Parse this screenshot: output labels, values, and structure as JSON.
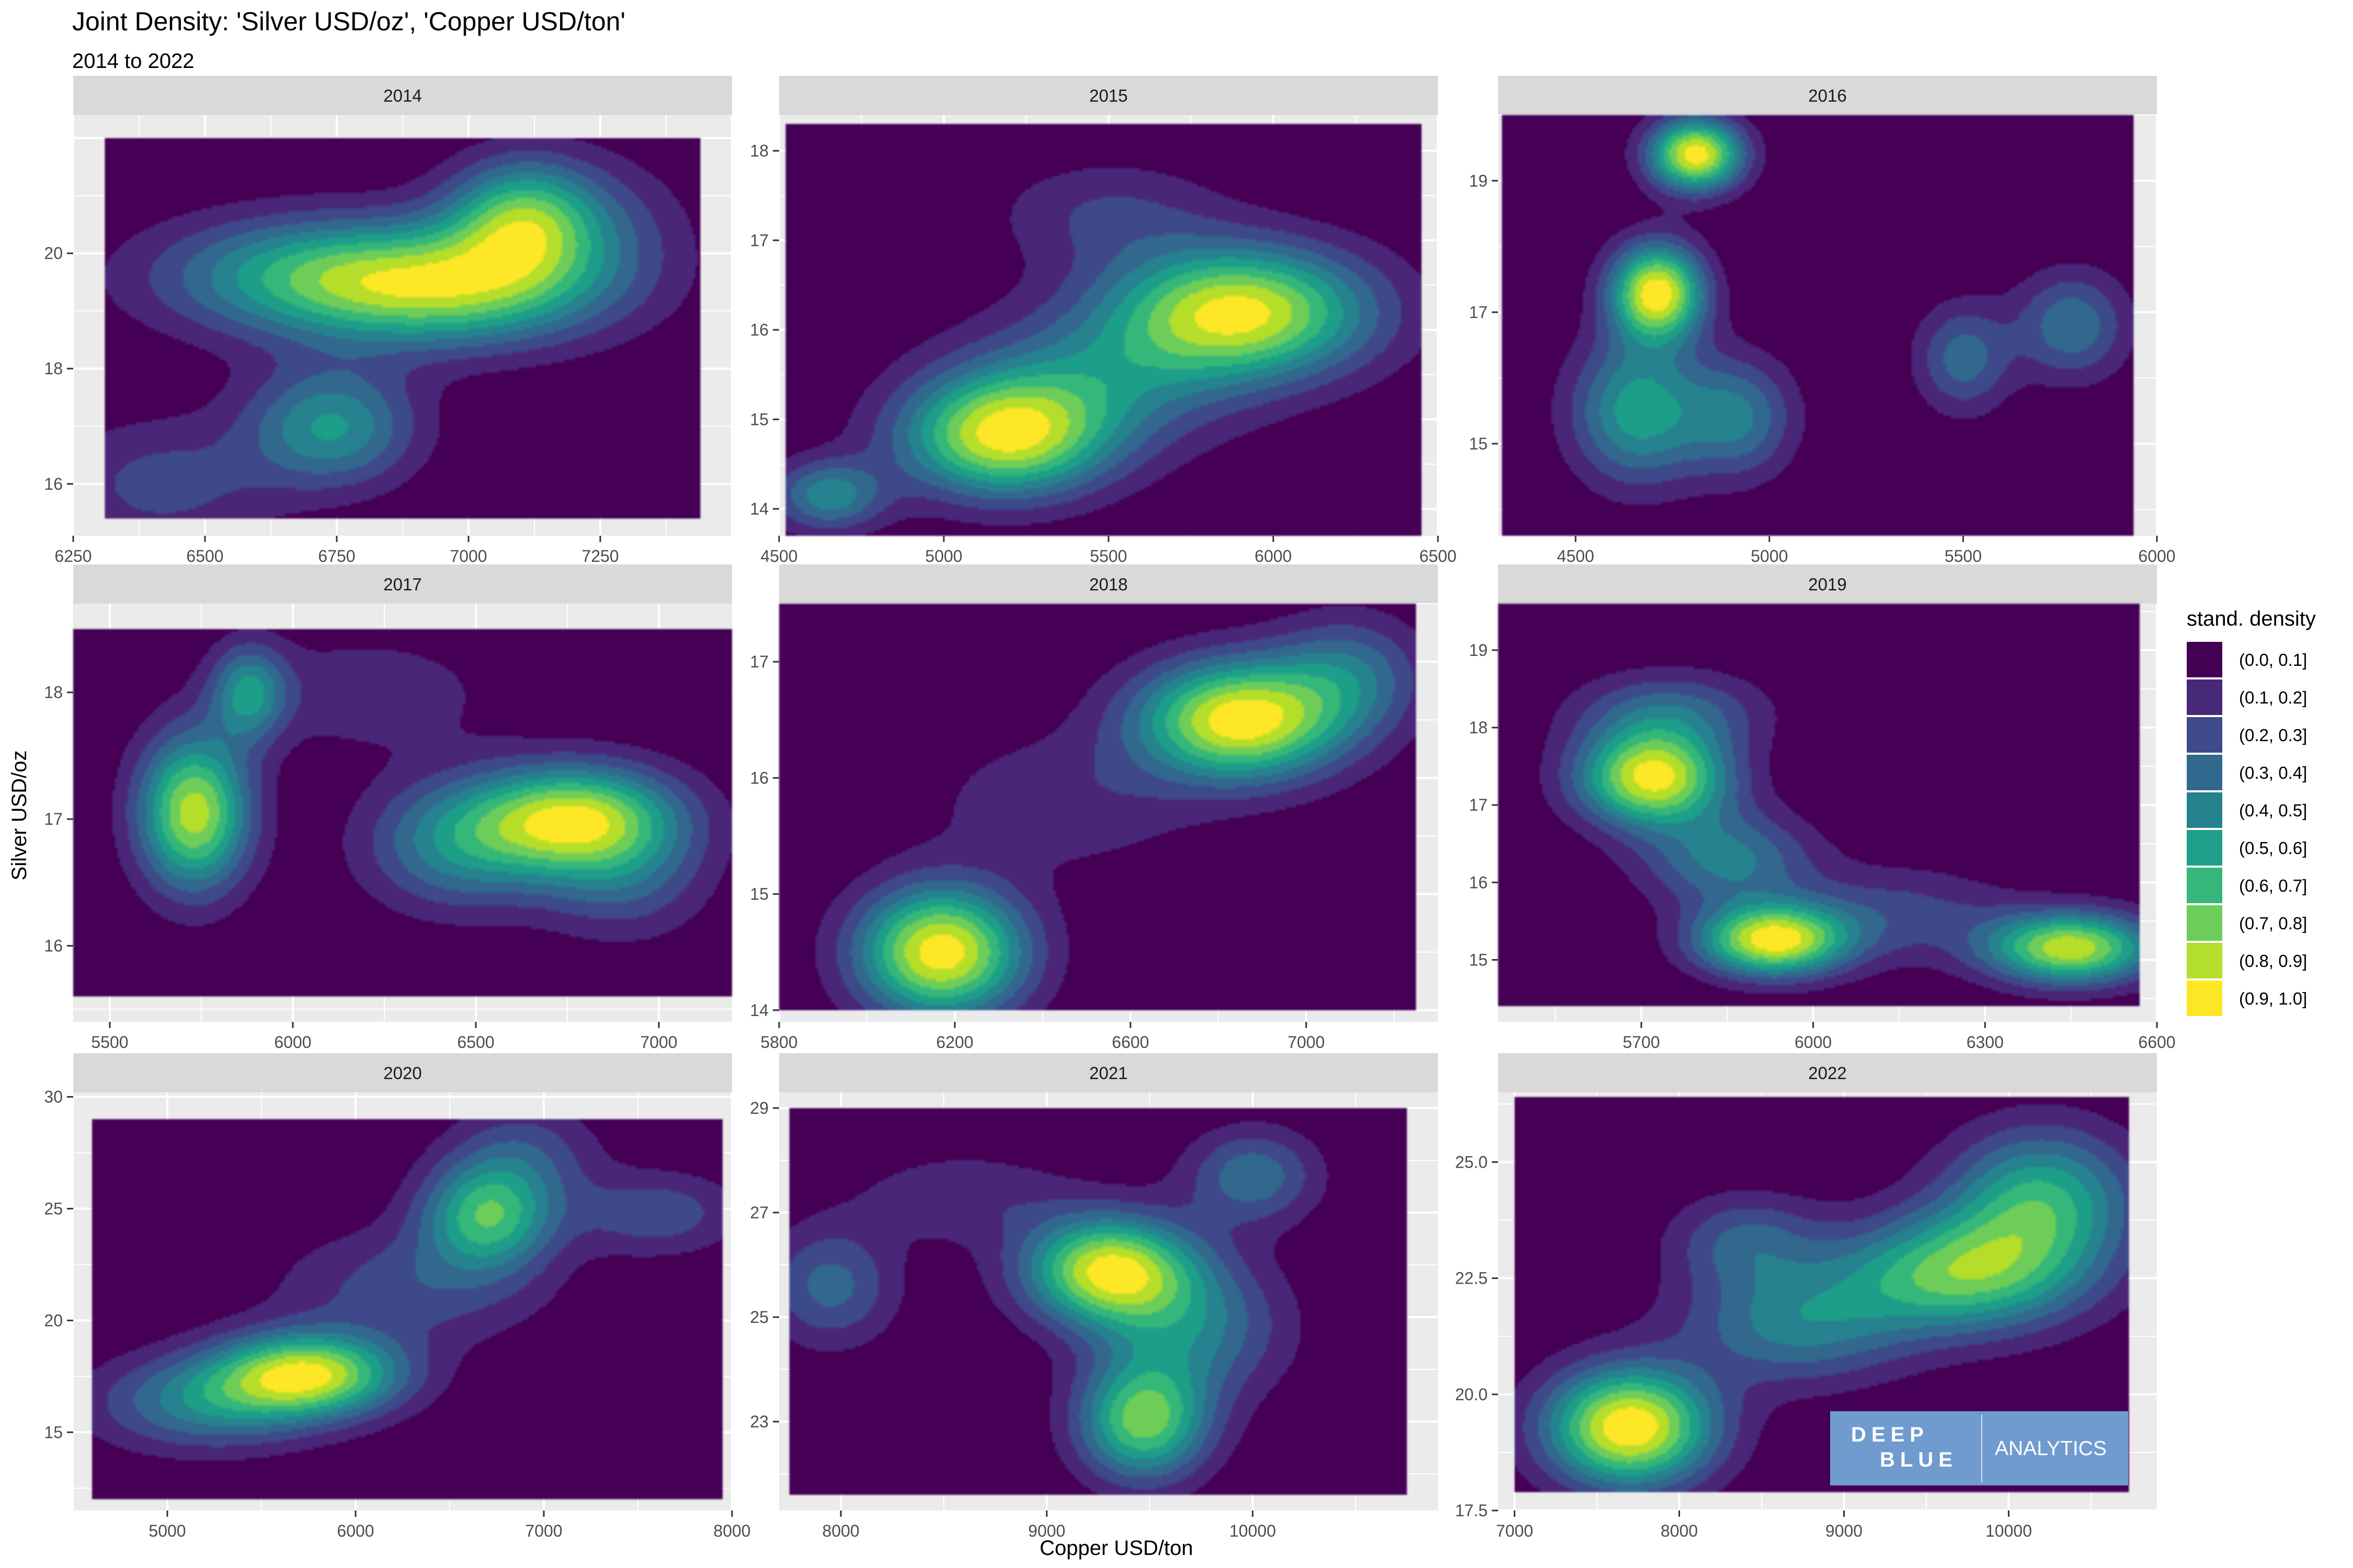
{
  "chart_data": {
    "type": "heatmap",
    "title": "Joint Density: 'Silver USD/oz', 'Copper USD/ton'",
    "subtitle": "2014 to 2022",
    "xlabel": "Copper USD/ton",
    "ylabel": "Silver USD/oz",
    "legend": {
      "title": "stand. density",
      "placement": "right",
      "bins": [
        {
          "label": "(0.0, 0.1]",
          "color": "#440154"
        },
        {
          "label": "(0.1, 0.2]",
          "color": "#482878"
        },
        {
          "label": "(0.2, 0.3]",
          "color": "#3E4A89"
        },
        {
          "label": "(0.3, 0.4]",
          "color": "#31688E"
        },
        {
          "label": "(0.4, 0.5]",
          "color": "#26828E"
        },
        {
          "label": "(0.5, 0.6]",
          "color": "#1F9E89"
        },
        {
          "label": "(0.6, 0.7]",
          "color": "#35B779"
        },
        {
          "label": "(0.7, 0.8]",
          "color": "#6DCD59"
        },
        {
          "label": "(0.8, 0.9]",
          "color": "#B4DE2C"
        },
        {
          "label": "(0.9, 1.0]",
          "color": "#FDE725"
        }
      ]
    },
    "facets": [
      {
        "name": "2014",
        "xlim": [
          6250,
          7500
        ],
        "ylim": [
          15.1,
          22.4
        ],
        "data_x": [
          6310,
          7440
        ],
        "data_y": [
          15.4,
          22.0
        ],
        "xticks": [
          6250,
          6500,
          6750,
          7000,
          7250
        ],
        "yticks": [
          16,
          18,
          20
        ],
        "peaks": [
          [
            6700,
            19.6,
            0.8,
            0.17,
            0.1
          ],
          [
            6980,
            19.4,
            0.96,
            0.16,
            0.1
          ],
          [
            7100,
            20.6,
            0.92,
            0.08,
            0.1
          ],
          [
            6740,
            17.0,
            0.76,
            0.09,
            0.1
          ],
          [
            6420,
            16.0,
            0.36,
            0.12,
            0.11
          ],
          [
            7250,
            20.4,
            0.3,
            0.1,
            0.12
          ]
        ]
      },
      {
        "name": "2015",
        "xlim": [
          4500,
          6500
        ],
        "ylim": [
          13.7,
          18.4
        ],
        "data_x": [
          4520,
          6450
        ],
        "data_y": [
          13.7,
          18.3
        ],
        "xticks": [
          4500,
          5000,
          5500,
          6000,
          6500
        ],
        "yticks": [
          14,
          15,
          16,
          17,
          18
        ],
        "peaks": [
          [
            5900,
            16.2,
            1.0,
            0.14,
            0.11
          ],
          [
            5180,
            14.8,
            0.92,
            0.11,
            0.1
          ],
          [
            4650,
            14.15,
            0.5,
            0.06,
            0.06
          ],
          [
            5450,
            15.4,
            0.4,
            0.15,
            0.12
          ],
          [
            5500,
            17.3,
            0.22,
            0.12,
            0.09
          ]
        ]
      },
      {
        "name": "2016",
        "xlim": [
          4300,
          6000
        ],
        "ylim": [
          13.6,
          20.0
        ],
        "data_x": [
          4310,
          5940
        ],
        "data_y": [
          13.6,
          20.0
        ],
        "xticks": [
          4500,
          5000,
          5500,
          6000
        ],
        "yticks": [
          15,
          17,
          19
        ],
        "peaks": [
          [
            4810,
            19.4,
            0.95,
            0.05,
            0.06
          ],
          [
            4710,
            17.3,
            0.95,
            0.05,
            0.08
          ],
          [
            4660,
            15.5,
            0.55,
            0.07,
            0.12
          ],
          [
            4920,
            15.4,
            0.4,
            0.06,
            0.1
          ],
          [
            5500,
            16.3,
            0.35,
            0.05,
            0.09
          ],
          [
            5780,
            16.8,
            0.38,
            0.06,
            0.09
          ]
        ]
      },
      {
        "name": "2017",
        "xlim": [
          5400,
          7200
        ],
        "ylim": [
          15.4,
          18.7
        ],
        "data_x": [
          5400,
          7200
        ],
        "data_y": [
          15.6,
          18.5
        ],
        "xticks": [
          5500,
          6000,
          6500,
          7000
        ],
        "yticks": [
          16,
          17,
          18
        ],
        "peaks": [
          [
            5730,
            17.05,
            1.0,
            0.06,
            0.13
          ],
          [
            5880,
            18.0,
            0.55,
            0.04,
            0.08
          ],
          [
            6780,
            17.0,
            1.0,
            0.11,
            0.09
          ],
          [
            6450,
            16.8,
            0.5,
            0.1,
            0.11
          ],
          [
            6900,
            16.5,
            0.3,
            0.09,
            0.1
          ],
          [
            6200,
            18.0,
            0.2,
            0.14,
            0.1
          ]
        ]
      },
      {
        "name": "2018",
        "xlim": [
          5800,
          7300
        ],
        "ylim": [
          13.9,
          17.5
        ],
        "data_x": [
          5800,
          7250
        ],
        "data_y": [
          14.0,
          17.5
        ],
        "xticks": [
          5800,
          6200,
          6600,
          7000
        ],
        "yticks": [
          14,
          15,
          16,
          17
        ],
        "peaks": [
          [
            6170,
            14.5,
            1.0,
            0.09,
            0.11
          ],
          [
            6850,
            16.5,
            1.0,
            0.11,
            0.1
          ],
          [
            7100,
            16.9,
            0.35,
            0.08,
            0.1
          ],
          [
            6450,
            15.8,
            0.18,
            0.15,
            0.12
          ]
        ]
      },
      {
        "name": "2019",
        "xlim": [
          5450,
          6600
        ],
        "ylim": [
          14.2,
          19.6
        ],
        "data_x": [
          5450,
          6570
        ],
        "data_y": [
          14.4,
          19.6
        ],
        "xticks": [
          5700,
          6000,
          6300,
          6600
        ],
        "yticks": [
          15,
          16,
          17,
          18,
          19
        ],
        "peaks": [
          [
            5720,
            17.35,
            1.0,
            0.08,
            0.08
          ],
          [
            5930,
            15.25,
            1.0,
            0.08,
            0.06
          ],
          [
            6450,
            15.15,
            0.93,
            0.09,
            0.06
          ],
          [
            5850,
            16.3,
            0.45,
            0.09,
            0.08
          ],
          [
            6150,
            15.6,
            0.25,
            0.12,
            0.08
          ],
          [
            5750,
            18.2,
            0.35,
            0.1,
            0.07
          ]
        ]
      },
      {
        "name": "2020",
        "xlim": [
          4500,
          8000
        ],
        "ylim": [
          11.5,
          30.2
        ],
        "data_x": [
          4600,
          7950
        ],
        "data_y": [
          12.0,
          29.0
        ],
        "xticks": [
          5000,
          6000,
          7000,
          8000
        ],
        "yticks": [
          15,
          20,
          25,
          30
        ],
        "peaks": [
          [
            5750,
            17.6,
            1.0,
            0.1,
            0.07
          ],
          [
            5200,
            16.3,
            0.5,
            0.12,
            0.08
          ],
          [
            6700,
            24.7,
            0.75,
            0.07,
            0.09
          ],
          [
            7600,
            24.8,
            0.32,
            0.09,
            0.07
          ],
          [
            6300,
            21.5,
            0.3,
            0.14,
            0.1
          ],
          [
            6900,
            27.5,
            0.28,
            0.08,
            0.09
          ]
        ]
      },
      {
        "name": "2021",
        "xlim": [
          7700,
          10900
        ],
        "ylim": [
          21.3,
          29.3
        ],
        "data_x": [
          7750,
          10750
        ],
        "data_y": [
          21.6,
          29.0
        ],
        "xticks": [
          8000,
          9000,
          10000
        ],
        "yticks": [
          23,
          25,
          27,
          29
        ],
        "peaks": [
          [
            9300,
            25.9,
            1.0,
            0.09,
            0.09
          ],
          [
            9470,
            23.0,
            0.82,
            0.07,
            0.1
          ],
          [
            9700,
            24.8,
            0.45,
            0.1,
            0.12
          ],
          [
            10000,
            27.7,
            0.42,
            0.07,
            0.08
          ],
          [
            7950,
            25.6,
            0.38,
            0.07,
            0.1
          ],
          [
            8600,
            27.3,
            0.2,
            0.12,
            0.08
          ]
        ]
      },
      {
        "name": "2022",
        "xlim": [
          6900,
          10900
        ],
        "ylim": [
          17.5,
          26.5
        ],
        "data_x": [
          7000,
          10730
        ],
        "data_y": [
          17.9,
          26.4
        ],
        "xticks": [
          7000,
          8000,
          9000,
          10000
        ],
        "yticks": [
          17.5,
          20.0,
          22.5,
          25.0
        ],
        "peaks": [
          [
            7700,
            19.3,
            1.0,
            0.09,
            0.1
          ],
          [
            9700,
            22.6,
            0.7,
            0.13,
            0.1
          ],
          [
            10200,
            24.2,
            0.6,
            0.1,
            0.12
          ],
          [
            8700,
            21.5,
            0.42,
            0.12,
            0.1
          ],
          [
            8400,
            23.3,
            0.3,
            0.08,
            0.08
          ]
        ]
      }
    ],
    "grid": true
  },
  "watermark": {
    "word1": "DEEP",
    "word2": "BLUE",
    "word3": "ANALYTICS",
    "color": "#6F9BCF"
  }
}
